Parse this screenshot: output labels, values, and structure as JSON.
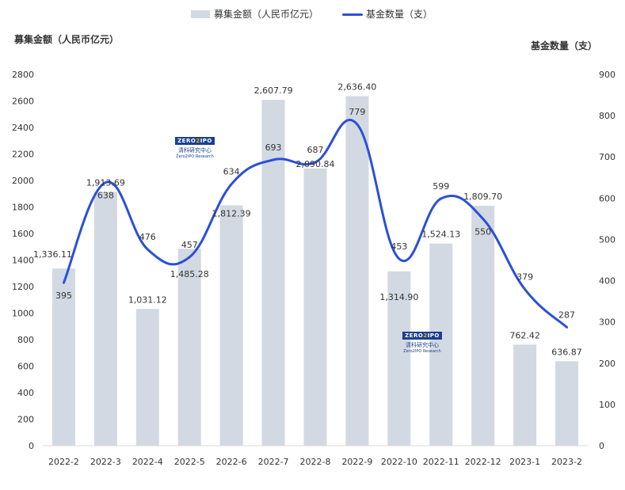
{
  "chart_data": {
    "type": "bar",
    "categories": [
      "2022-2",
      "2022-3",
      "2022-4",
      "2022-5",
      "2022-6",
      "2022-7",
      "2022-8",
      "2022-9",
      "2022-10",
      "2022-11",
      "2022-12",
      "2023-1",
      "2023-2"
    ],
    "series": [
      {
        "name": "募集金额（人民币亿元）",
        "type": "bar",
        "axis": "left",
        "values": [
          1336.11,
          1913.69,
          1031.12,
          1485.28,
          1812.39,
          2607.79,
          2090.84,
          2636.4,
          1314.9,
          1524.13,
          1809.7,
          762.42,
          636.87
        ],
        "labels": [
          "1,336.11",
          "1,913.69",
          "1,031.12",
          "1,485.28",
          "1,812.39",
          "2,607.79",
          "2,090.84",
          "2,636.40",
          "1,314.90",
          "1,524.13",
          "1,809.70",
          "762.42",
          "636.87"
        ],
        "color": "#d3d9e2"
      },
      {
        "name": "基金数量（支）",
        "type": "line",
        "axis": "right",
        "smooth": true,
        "values": [
          395,
          638,
          476,
          457,
          634,
          693,
          687,
          779,
          453,
          599,
          550,
          379,
          287
        ],
        "color": "#2b4fdb"
      }
    ],
    "ylabel_left": "募集金额（人民币亿元）",
    "ylabel_right": "基金数量（支）",
    "ylim_left": [
      0,
      2800
    ],
    "yticks_left": [
      0,
      200,
      400,
      600,
      800,
      1000,
      1200,
      1400,
      1600,
      1800,
      2000,
      2200,
      2400,
      2600,
      2800
    ],
    "ylim_right": [
      0,
      900
    ],
    "yticks_right": [
      0,
      100,
      200,
      300,
      400,
      500,
      600,
      700,
      800,
      900
    ],
    "grid": false,
    "legend_position": "top-center"
  },
  "watermark": {
    "logo_left": "ZERO",
    "logo_mid": "2",
    "logo_right": "IPO",
    "cn": "清科研究中心",
    "en": "Zero2IPO Research"
  }
}
